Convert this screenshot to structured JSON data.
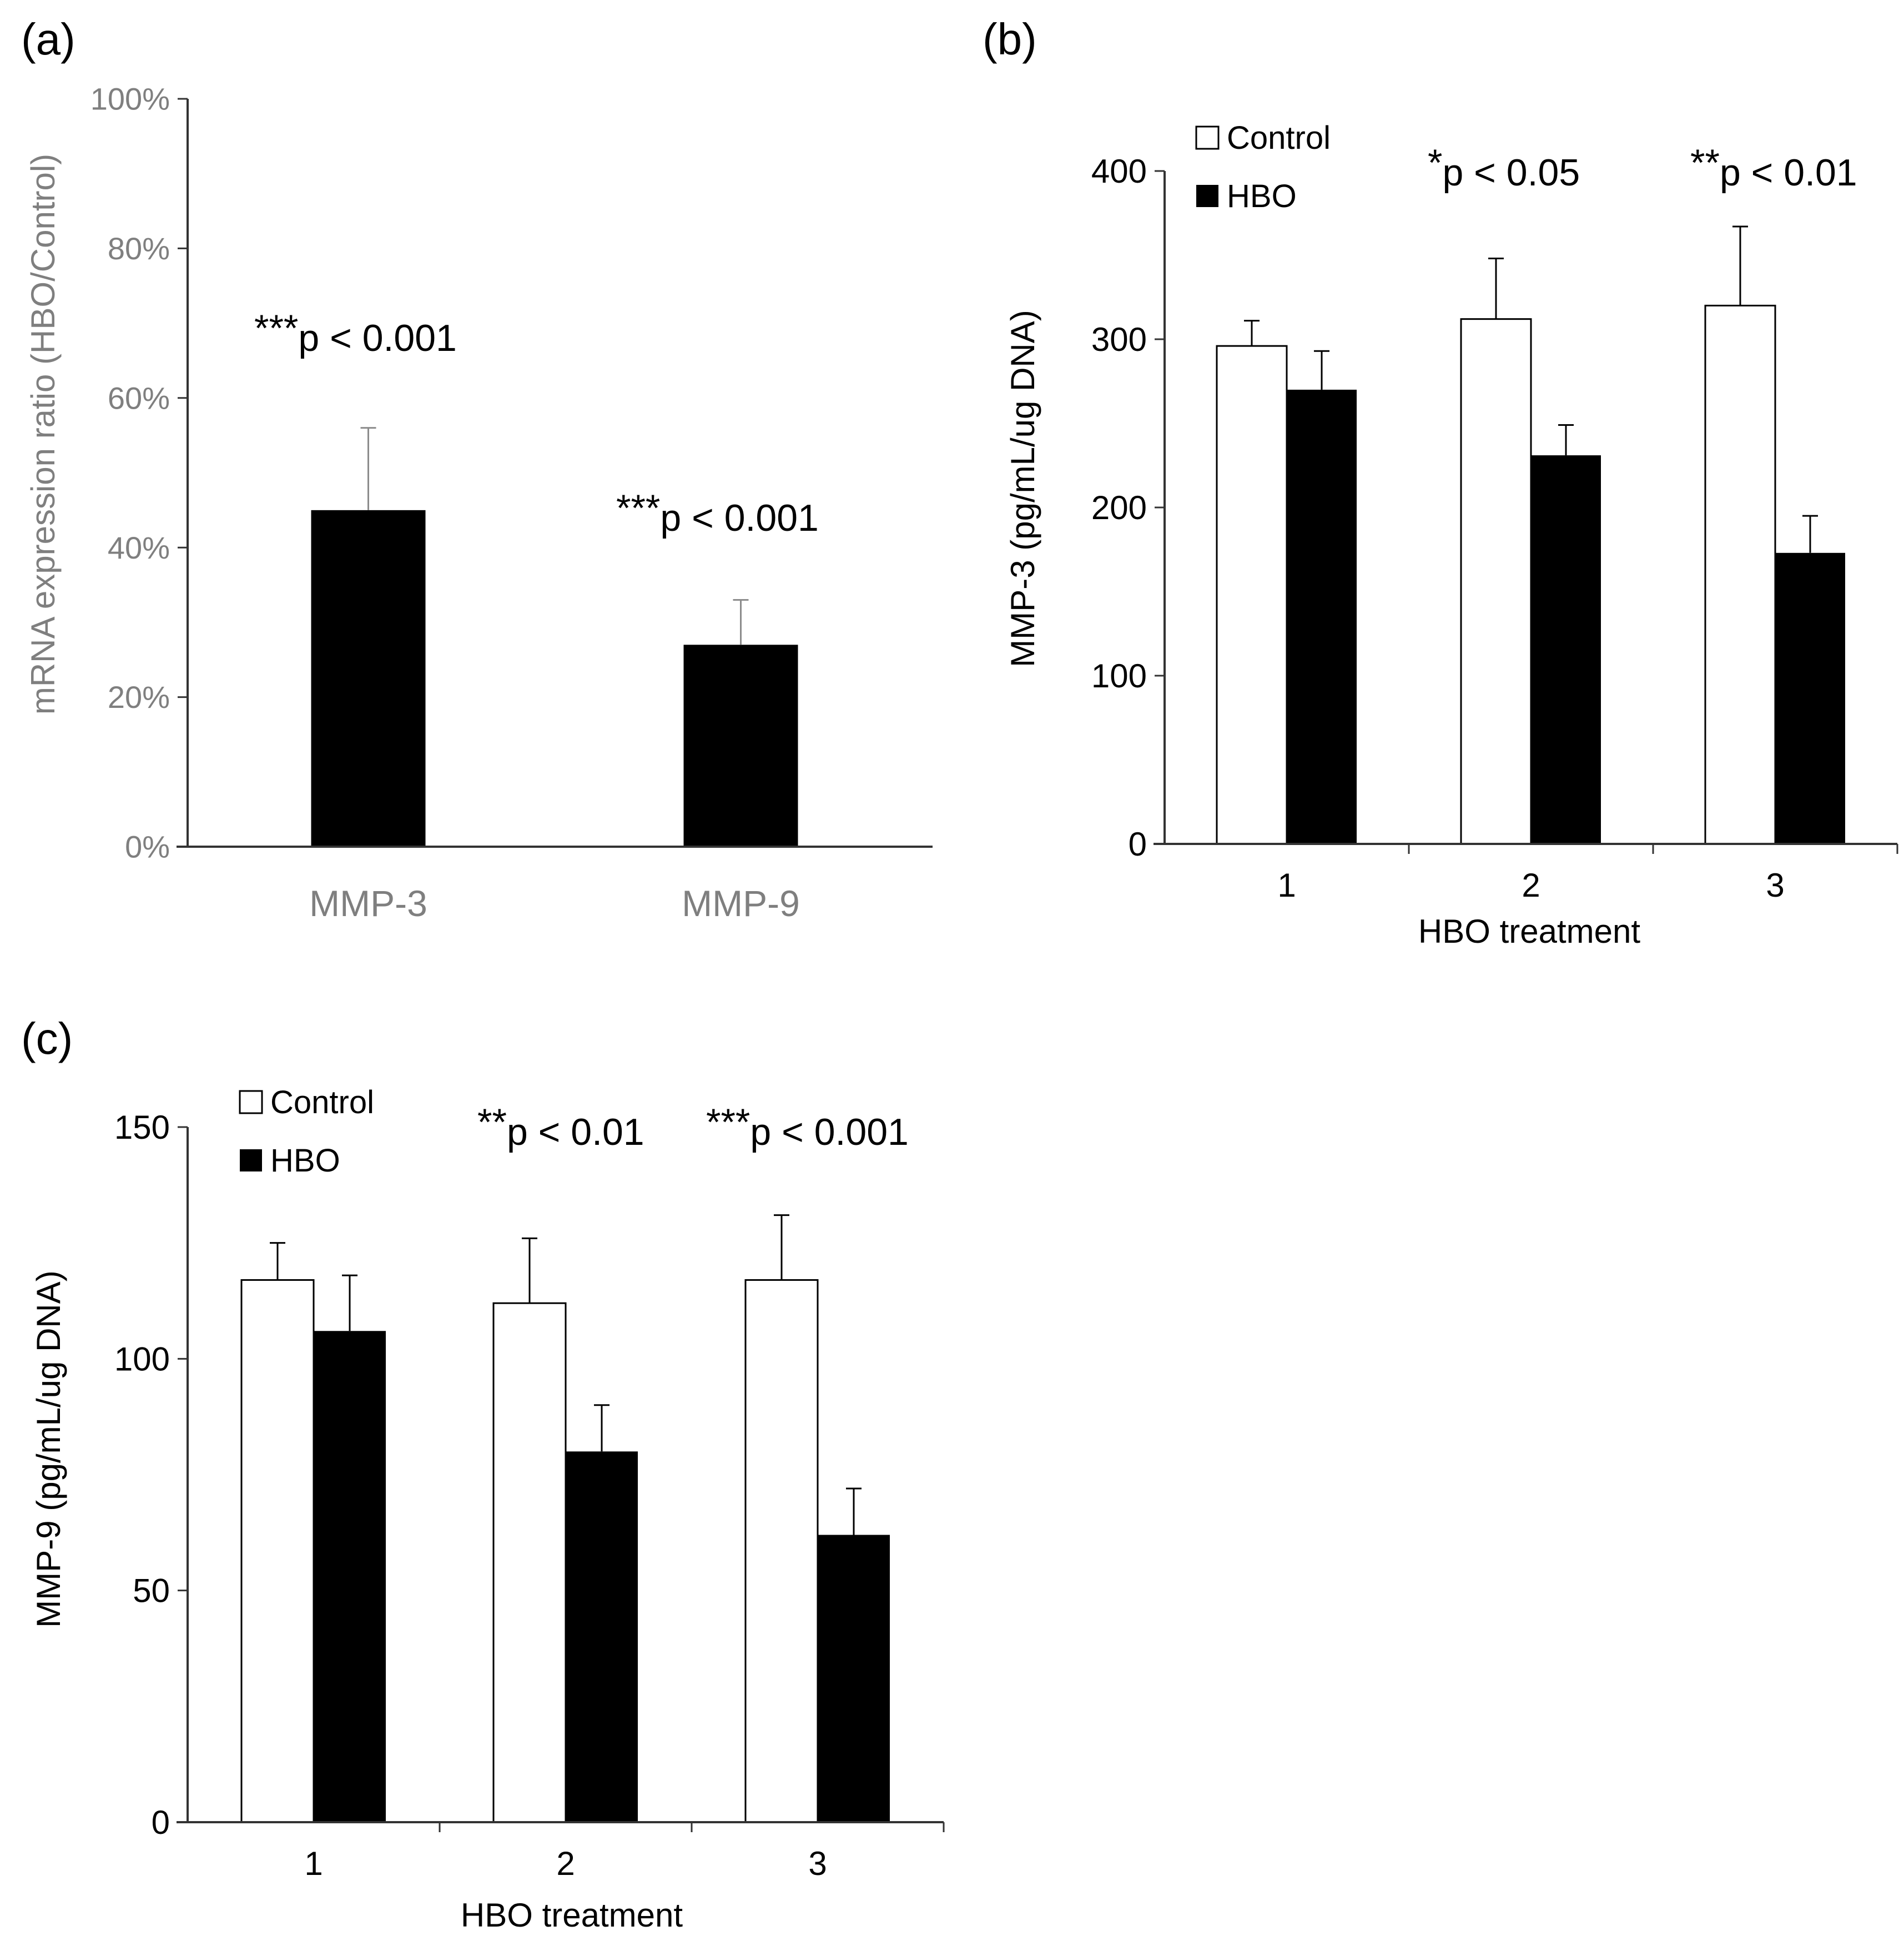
{
  "chart_data": [
    {
      "panel": "(a)",
      "type": "bar",
      "ylabel": "mRNA expression ratio (HBO/Control)",
      "ylim": [
        0,
        100
      ],
      "yticks": [
        0,
        20,
        40,
        60,
        80,
        100
      ],
      "ytick_labels": [
        "0%",
        "20%",
        "40%",
        "60%",
        "80%",
        "100%"
      ],
      "categories": [
        "MMP-3",
        "MMP-9"
      ],
      "values": [
        45,
        27
      ],
      "errors": [
        11,
        6
      ],
      "annotations": [
        {
          "stars": "***",
          "text": "p < 0.001"
        },
        {
          "stars": "***",
          "text": "p < 0.001"
        }
      ]
    },
    {
      "panel": "(b)",
      "type": "bar",
      "ylabel": "MMP-3 (pg/mL/ug DNA)",
      "xlabel": "HBO treatment",
      "ylim": [
        0,
        400
      ],
      "yticks": [
        0,
        100,
        200,
        300,
        400
      ],
      "ytick_labels": [
        "0",
        "100",
        "200",
        "300",
        "400"
      ],
      "categories": [
        "1",
        "2",
        "3"
      ],
      "legend": [
        "Control",
        "HBO"
      ],
      "series": [
        {
          "name": "Control",
          "values": [
            296,
            312,
            320
          ],
          "errors": [
            15,
            36,
            47
          ]
        },
        {
          "name": "HBO",
          "values": [
            270,
            231,
            173
          ],
          "errors": [
            23,
            18,
            22
          ]
        }
      ],
      "annotations": [
        {
          "stars": "*",
          "text": "p < 0.05"
        },
        {
          "stars": "**",
          "text": "p < 0.01"
        }
      ]
    },
    {
      "panel": "(c)",
      "type": "bar",
      "ylabel": "MMP-9 (pg/mL/ug DNA)",
      "xlabel": "HBO treatment",
      "ylim": [
        0,
        150
      ],
      "yticks": [
        0,
        50,
        100,
        150
      ],
      "ytick_labels": [
        "0",
        "50",
        "100",
        "150"
      ],
      "categories": [
        "1",
        "2",
        "3"
      ],
      "legend": [
        "Control",
        "HBO"
      ],
      "series": [
        {
          "name": "Control",
          "values": [
            117,
            112,
            117
          ],
          "errors": [
            8,
            14,
            14
          ]
        },
        {
          "name": "HBO",
          "values": [
            106,
            80,
            62
          ],
          "errors": [
            12,
            10,
            10
          ]
        }
      ],
      "annotations": [
        {
          "stars": "**",
          "text": "p < 0.01"
        },
        {
          "stars": "***",
          "text": "p < 0.001"
        }
      ]
    }
  ]
}
